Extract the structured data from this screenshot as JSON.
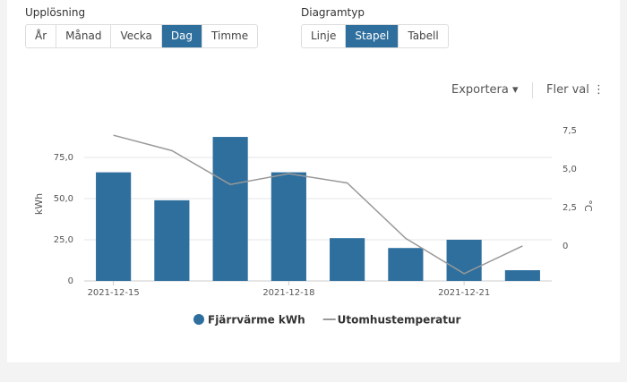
{
  "controls": {
    "resolution": {
      "label": "Upplösning",
      "options": [
        "År",
        "Månad",
        "Vecka",
        "Dag",
        "Timme"
      ],
      "active": 3
    },
    "chart_type": {
      "label": "Diagramtyp",
      "options": [
        "Linje",
        "Stapel",
        "Tabell"
      ],
      "active": 1
    },
    "export": "Exportera",
    "more": "Fler val"
  },
  "chart_data": {
    "type": "bar",
    "categories": [
      "2021-12-15",
      null,
      null,
      "2021-12-18",
      null,
      null,
      "2021-12-21",
      null
    ],
    "series": [
      {
        "name": "Fjärrvärme kWh",
        "color": "#2e6f9e",
        "type": "bar",
        "values": [
          66,
          49,
          87.5,
          66,
          26,
          20,
          25,
          6.5
        ]
      },
      {
        "name": "Utomhustemperatur",
        "color": "#999999",
        "type": "line",
        "axis": "y2",
        "values": [
          7.2,
          6.2,
          4.0,
          4.7,
          4.1,
          0.5,
          -1.8,
          0
        ]
      }
    ],
    "ylabel": "kWh",
    "y2label": "°C",
    "ylim": [
      0,
      94.6
    ],
    "yticks": [
      0,
      {
        "value": 25,
        "label": "25,0"
      },
      {
        "value": 50,
        "label": "50,0"
      },
      {
        "value": 75,
        "label": "75,0"
      }
    ],
    "y2lim": [
      -2.27,
      7.85
    ],
    "y2ticks": [
      0,
      {
        "value": 2.5,
        "label": "2,5"
      },
      {
        "value": 5,
        "label": "5,0"
      },
      {
        "value": 7.5,
        "label": "7,5"
      }
    ],
    "grid": true
  }
}
